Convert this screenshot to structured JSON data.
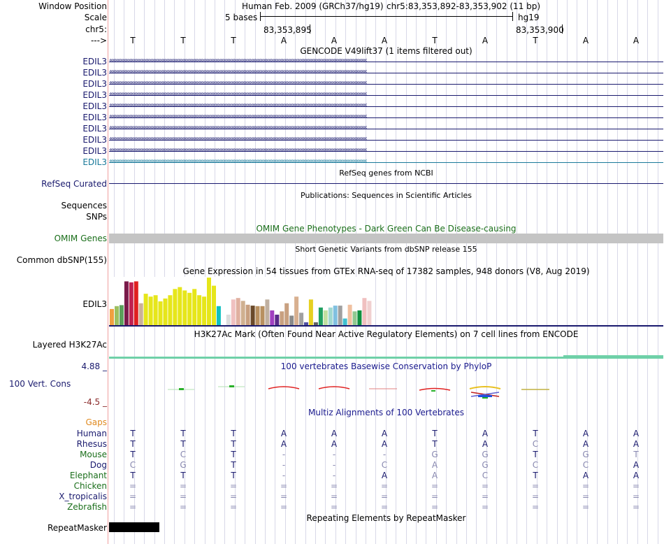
{
  "header": {
    "window_position_label": "Window Position",
    "scale_label": "Scale",
    "chr_label": "chr5:",
    "arrow_label": "--->",
    "assembly_text": "Human Feb. 2009 (GRCh37/hg19)",
    "position_text": "chr5:83,353,892-83,353,902 (11 bp)",
    "scale_text": "5 bases",
    "scale_db": "hg19",
    "coord_left": "83,353,895",
    "coord_right": "83,353,900"
  },
  "bases": [
    "T",
    "T",
    "T",
    "A",
    "A",
    "A",
    "T",
    "A",
    "T",
    "A",
    "A"
  ],
  "gencode": {
    "title": "GENCODE V49lift37 (1 items filtered out)",
    "genes": [
      "EDIL3",
      "EDIL3",
      "EDIL3",
      "EDIL3",
      "EDIL3",
      "EDIL3",
      "EDIL3",
      "EDIL3",
      "EDIL3",
      "EDIL3"
    ],
    "gene_color": "#1a1a6e",
    "last_gene_color": "#1a7a9a"
  },
  "refseq": {
    "title": "RefSeq genes from NCBI",
    "label": "RefSeq Curated"
  },
  "publications": {
    "title": "Publications: Sequences in Scientific Articles",
    "label_a": "Sequences",
    "label_b": "SNPs"
  },
  "omim": {
    "title": "OMIM Gene Phenotypes - Dark Green Can Be Disease-causing",
    "label": "OMIM Genes"
  },
  "dbsnp": {
    "title": "Short Genetic Variants from dbSNP release 155",
    "label": "Common dbSNP(155)"
  },
  "gtex": {
    "title": "Gene Expression in 54 tissues from GTEx RNA-seq of 17382 samples, 948 donors (V8, Aug 2019)",
    "label": "EDIL3",
    "bars": [
      {
        "v": 0.34,
        "c": "#f0a040"
      },
      {
        "v": 0.4,
        "c": "#9cc060"
      },
      {
        "v": 0.42,
        "c": "#5aa05a"
      },
      {
        "v": 0.92,
        "c": "#7a1a4a"
      },
      {
        "v": 0.9,
        "c": "#c02050"
      },
      {
        "v": 0.92,
        "c": "#e02020"
      },
      {
        "v": 0.46,
        "c": "#cbb09a"
      },
      {
        "v": 0.66,
        "c": "#e6e61a"
      },
      {
        "v": 0.6,
        "c": "#e6e61a"
      },
      {
        "v": 0.63,
        "c": "#e6e61a"
      },
      {
        "v": 0.5,
        "c": "#e6e61a"
      },
      {
        "v": 0.56,
        "c": "#e6e61a"
      },
      {
        "v": 0.63,
        "c": "#e6e61a"
      },
      {
        "v": 0.76,
        "c": "#e6e61a"
      },
      {
        "v": 0.8,
        "c": "#e6e61a"
      },
      {
        "v": 0.73,
        "c": "#e6e61a"
      },
      {
        "v": 0.68,
        "c": "#e6e61a"
      },
      {
        "v": 0.76,
        "c": "#e6e61a"
      },
      {
        "v": 0.63,
        "c": "#e6e61a"
      },
      {
        "v": 0.6,
        "c": "#e6e61a"
      },
      {
        "v": 1.0,
        "c": "#e6e61a"
      },
      {
        "v": 0.83,
        "c": "#e6e61a"
      },
      {
        "v": 0.4,
        "c": "#10c0c0"
      },
      {
        "v": 0.0,
        "c": "#ffffff"
      },
      {
        "v": 0.22,
        "c": "#dddddd"
      },
      {
        "v": 0.54,
        "c": "#f0c0c0"
      },
      {
        "v": 0.57,
        "c": "#e0b0a0"
      },
      {
        "v": 0.51,
        "c": "#d0b090"
      },
      {
        "v": 0.43,
        "c": "#c8a080"
      },
      {
        "v": 0.41,
        "c": "#6a4a2a"
      },
      {
        "v": 0.4,
        "c": "#b89060"
      },
      {
        "v": 0.4,
        "c": "#b89060"
      },
      {
        "v": 0.54,
        "c": "#c0b0a0"
      },
      {
        "v": 0.31,
        "c": "#a040c0"
      },
      {
        "v": 0.22,
        "c": "#5a2a8a"
      },
      {
        "v": 0.29,
        "c": "#c8a080"
      },
      {
        "v": 0.46,
        "c": "#c8a080"
      },
      {
        "v": 0.2,
        "c": "#8a8a8a"
      },
      {
        "v": 0.6,
        "c": "#d8b090"
      },
      {
        "v": 0.26,
        "c": "#a0a0a0"
      },
      {
        "v": 0.06,
        "c": "#5050a0"
      },
      {
        "v": 0.54,
        "c": "#e6d020"
      },
      {
        "v": 0.06,
        "c": "#606060"
      },
      {
        "v": 0.37,
        "c": "#20a060"
      },
      {
        "v": 0.31,
        "c": "#c0e0a0"
      },
      {
        "v": 0.37,
        "c": "#a0d8d0"
      },
      {
        "v": 0.41,
        "c": "#80c0e0"
      },
      {
        "v": 0.41,
        "c": "#a0a0a0"
      },
      {
        "v": 0.14,
        "c": "#40c0d0"
      },
      {
        "v": 0.43,
        "c": "#f0c0a0"
      },
      {
        "v": 0.29,
        "c": "#90c890"
      },
      {
        "v": 0.31,
        "c": "#109040"
      },
      {
        "v": 0.57,
        "c": "#f0c0c0"
      },
      {
        "v": 0.51,
        "c": "#f0d0d0"
      }
    ]
  },
  "h3k27ac": {
    "title": "H3K27Ac Mark (Often Found Near Active Regulatory Elements) on 7 cell lines from ENCODE",
    "label": "Layered H3K27Ac"
  },
  "conservation": {
    "title": "100 vertebrates Basewise Conservation by PhyloP",
    "label": "100 Vert. Cons",
    "max_label": "4.88 _",
    "min_label": "-4.5 _"
  },
  "multiz": {
    "title": "Multiz Alignments of 100 Vertebrates",
    "gaps_label": "Gaps",
    "species": [
      {
        "name": "Human",
        "color": "#1a1a6e",
        "bases": [
          "T",
          "T",
          "T",
          "A",
          "A",
          "A",
          "T",
          "A",
          "T",
          "A",
          "A"
        ]
      },
      {
        "name": "Rhesus",
        "color": "#1a1a6e",
        "bases": [
          "T",
          "T",
          "T",
          "A",
          "A",
          "A",
          "T",
          "A",
          "C",
          "A",
          "A"
        ]
      },
      {
        "name": "Mouse",
        "color": "#1a6e1a",
        "bases": [
          "T",
          "C",
          "T",
          "-",
          "-",
          "-",
          "G",
          "G",
          "T",
          "G",
          "T"
        ]
      },
      {
        "name": "Dog",
        "color": "#1a1a6e",
        "bases": [
          "C",
          "G",
          "T",
          "-",
          "-",
          "C",
          "A",
          "G",
          "C",
          "C",
          "A"
        ]
      },
      {
        "name": "Elephant",
        "color": "#1a6e1a",
        "bases": [
          "T",
          "T",
          "T",
          "-",
          "-",
          "A",
          "A",
          "C",
          "T",
          "A",
          "A"
        ]
      },
      {
        "name": "Chicken",
        "color": "#1a6e1a",
        "bases": [
          "=",
          "=",
          "=",
          "=",
          "=",
          "=",
          "=",
          "=",
          "=",
          "=",
          "="
        ]
      },
      {
        "name": "X_tropicalis",
        "color": "#1a1a6e",
        "bases": [
          "=",
          "=",
          "=",
          "=",
          "=",
          "=",
          "=",
          "=",
          "=",
          "=",
          "="
        ]
      },
      {
        "name": "Zebrafish",
        "color": "#1a6e1a",
        "bases": [
          "=",
          "=",
          "=",
          "=",
          "=",
          "=",
          "=",
          "=",
          "=",
          "=",
          "="
        ]
      }
    ]
  },
  "repeatmasker": {
    "title": "Repeating Elements by RepeatMasker",
    "label": "RepeatMasker"
  }
}
